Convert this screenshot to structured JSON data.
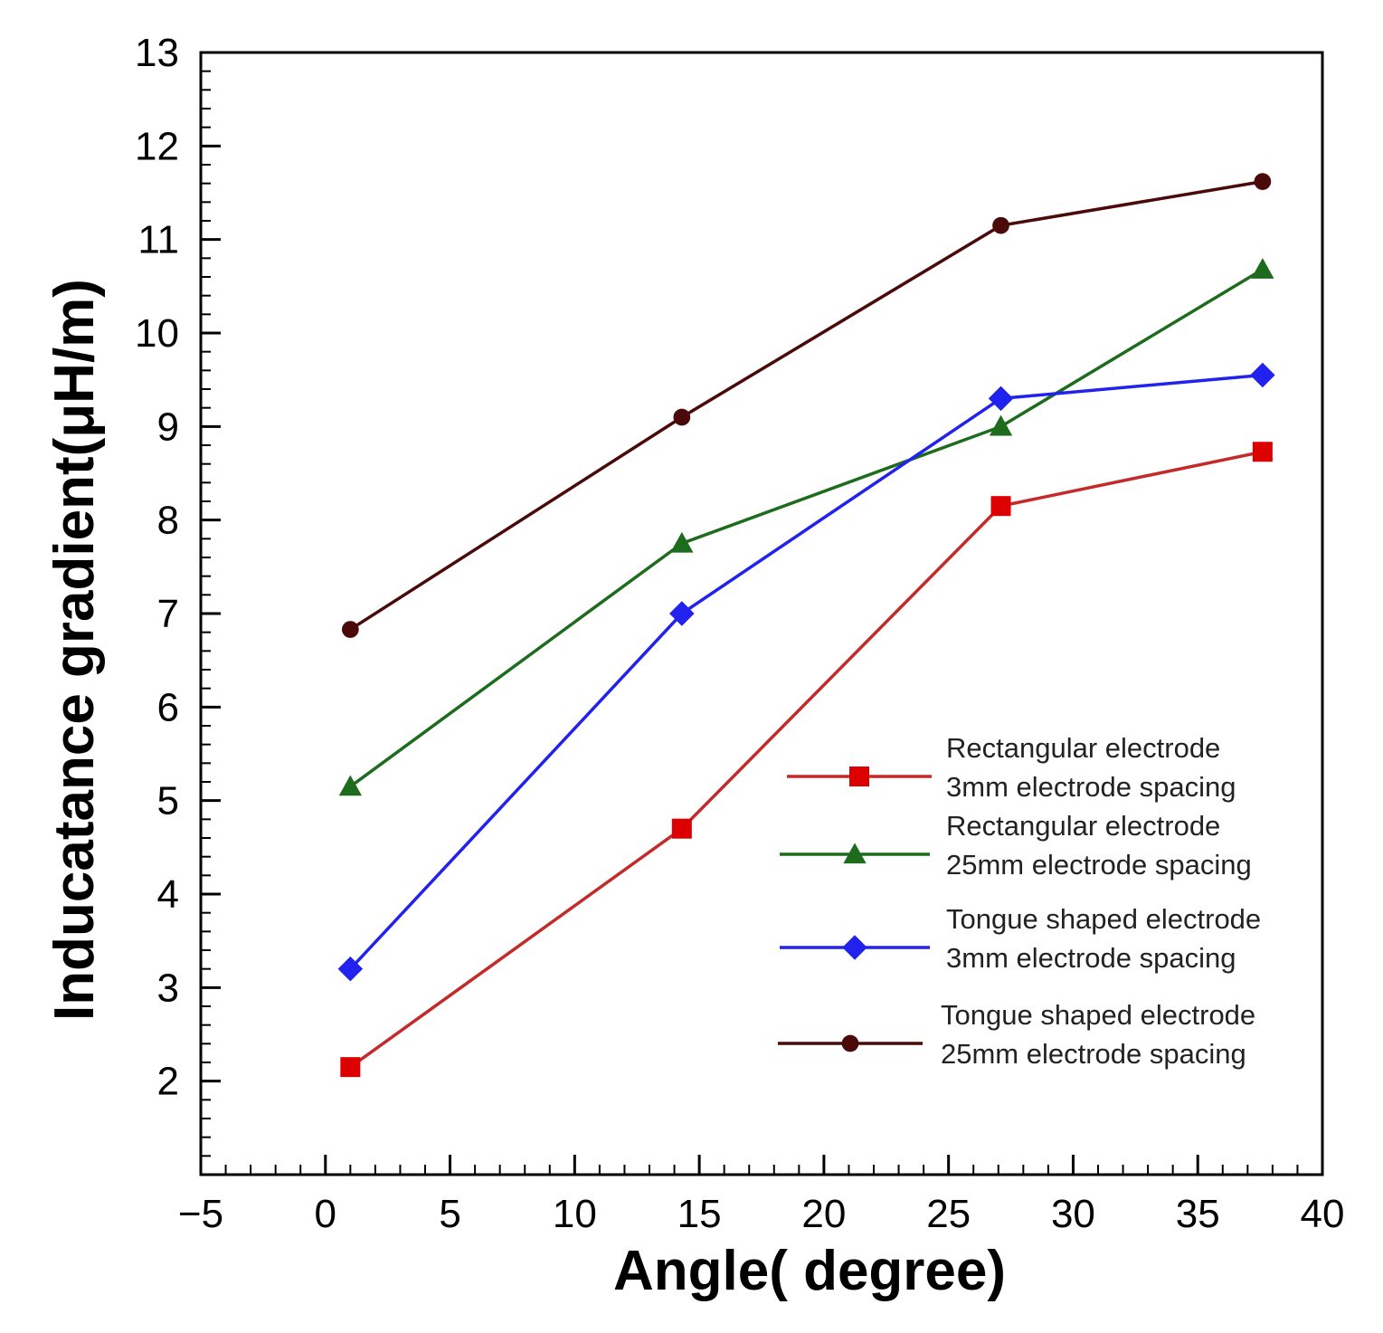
{
  "chart_data": {
    "type": "line",
    "title": "",
    "xlabel": "Angle( degree)",
    "ylabel": "Inducatance gradient(μH/m)",
    "xlim": [
      -5,
      40
    ],
    "ylim": [
      1,
      13
    ],
    "xticks": [
      -5,
      0,
      5,
      10,
      15,
      20,
      25,
      30,
      35,
      40
    ],
    "xtick_labels": [
      "−5",
      "0",
      "5",
      "10",
      "15",
      "20",
      "25",
      "30",
      "35",
      "40"
    ],
    "yticks": [
      2,
      3,
      4,
      5,
      6,
      7,
      8,
      9,
      10,
      11,
      12,
      13
    ],
    "ytick_labels": [
      "2",
      "3",
      "4",
      "5",
      "6",
      "7",
      "8",
      "9",
      "10",
      "11",
      "12",
      "13"
    ],
    "grid": false,
    "legend_position": "right-middle",
    "series": [
      {
        "name_line1": "Rectangular electrode",
        "name_line2": "3mm electrode spacing",
        "color": "#c42a2a",
        "marker_color": "#dd0000",
        "marker": "square",
        "x": [
          1,
          14.3,
          27.1,
          37.6
        ],
        "y": [
          2.15,
          4.7,
          8.15,
          8.73
        ]
      },
      {
        "name_line1": "Rectangular electrode",
        "name_line2": "25mm electrode spacing",
        "color": "#1d6b1d",
        "marker_color": "#1d6b1d",
        "marker": "triangle",
        "x": [
          1,
          14.3,
          27.1,
          37.6
        ],
        "y": [
          5.15,
          7.75,
          9.0,
          10.68
        ]
      },
      {
        "name_line1": "Tongue  shaped electrode",
        "name_line2": "3mm electrode spacing",
        "color": "#2222ee",
        "marker_color": "#2222ee",
        "marker": "diamond",
        "x": [
          1,
          14.3,
          27.1,
          37.6
        ],
        "y": [
          3.2,
          7.0,
          9.3,
          9.55
        ]
      },
      {
        "name_line1": "Tongue  shaped electrode",
        "name_line2": "25mm electrode spacing",
        "color": "#4a0a0a",
        "marker_color": "#4a0a0a",
        "marker": "circle",
        "x": [
          1,
          14.3,
          27.1,
          37.6
        ],
        "y": [
          6.83,
          9.1,
          11.15,
          11.62
        ]
      }
    ]
  }
}
